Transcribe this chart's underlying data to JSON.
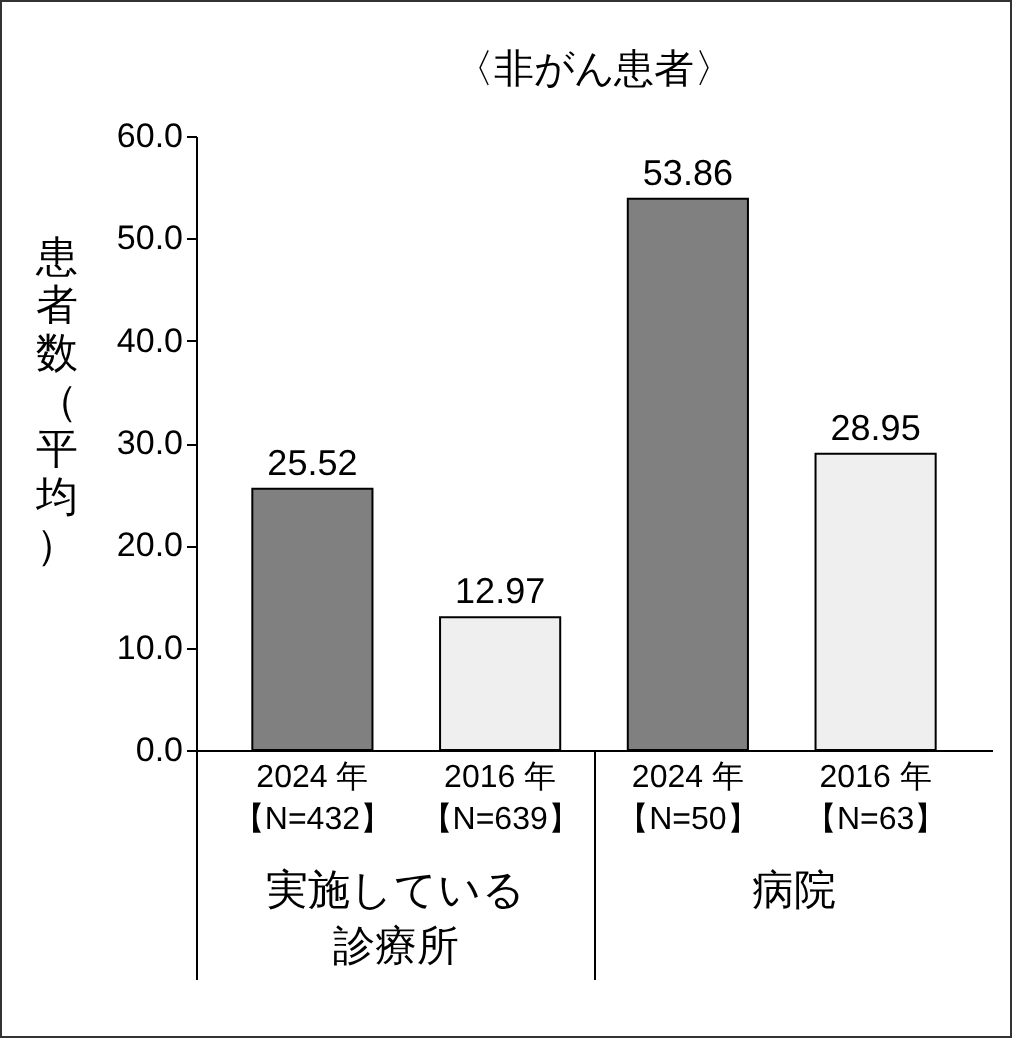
{
  "chart_data": {
    "type": "bar",
    "title": "〈非がん患者〉",
    "ylabel": "患者数（平均）",
    "categories": [
      "2024 年【N=432】",
      "2016 年【N=639】",
      "2024 年【N=50】",
      "2016 年【N=63】"
    ],
    "values": [
      25.52,
      12.97,
      53.86,
      28.95
    ],
    "colors": [
      "#808080",
      "#efefef",
      "#808080",
      "#efefef"
    ],
    "ylim": [
      0,
      60
    ],
    "yticks": [
      {
        "value": 0,
        "label": "0.0"
      },
      {
        "value": 10,
        "label": "10.0"
      },
      {
        "value": 20,
        "label": "20.0"
      },
      {
        "value": 30,
        "label": "30.0"
      },
      {
        "value": 40,
        "label": "40.0"
      },
      {
        "value": 50,
        "label": "50.0"
      },
      {
        "value": 60,
        "label": "60.0"
      }
    ],
    "data_labels": true,
    "annotations": [
      "実施している診療所",
      "病院"
    ]
  }
}
